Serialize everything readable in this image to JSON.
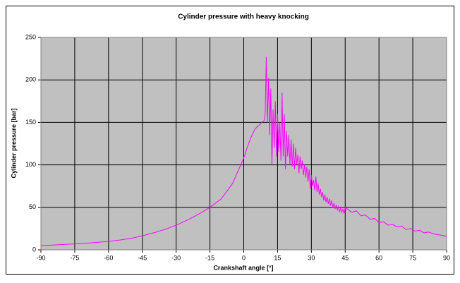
{
  "chart_data": {
    "type": "line",
    "title": "Cylinder pressure with heavy knocking",
    "x_label": "Crankshaft angle [°]",
    "y_label": "Cylinder pressure [bar]",
    "xlim": [
      -90,
      90
    ],
    "xticks": [
      -90,
      -75,
      -60,
      -45,
      -30,
      -15,
      0,
      15,
      30,
      45,
      60,
      75,
      90
    ],
    "ylim": [
      0,
      250
    ],
    "yticks": [
      0,
      50,
      100,
      150,
      200,
      250
    ],
    "grid": true,
    "color": "#ff00ff",
    "x": [
      -90,
      -85,
      -80,
      -75,
      -70,
      -65,
      -60,
      -55,
      -50,
      -45,
      -40,
      -35,
      -30,
      -25,
      -20,
      -15,
      -10,
      -5,
      0,
      1,
      2,
      3,
      4,
      5,
      6,
      7,
      8,
      9,
      9.5,
      10,
      10.5,
      11,
      11.5,
      12,
      12.5,
      13,
      13.5,
      14,
      14.5,
      15,
      15.5,
      16,
      16.5,
      17,
      17.5,
      18,
      18.5,
      19,
      19.5,
      20,
      20.5,
      21,
      21.5,
      22,
      22.5,
      23,
      23.5,
      24,
      24.5,
      25,
      25.5,
      26,
      26.5,
      27,
      27.5,
      28,
      28.5,
      29,
      29.5,
      30,
      30.5,
      31,
      31.5,
      32,
      32.5,
      33,
      33.5,
      34,
      34.5,
      35,
      35.5,
      36,
      36.5,
      37,
      37.5,
      38,
      38.5,
      39,
      39.5,
      40,
      40.5,
      41,
      41.5,
      42,
      42.5,
      43,
      43.5,
      44,
      44.5,
      45,
      46,
      48,
      50,
      52,
      54,
      56,
      58,
      60,
      62,
      64,
      66,
      68,
      70,
      72,
      74,
      76,
      78,
      80,
      82,
      84,
      86,
      88,
      90
    ],
    "values": [
      5,
      5.6,
      6.3,
      7,
      7.8,
      8.8,
      10,
      11.5,
      13.5,
      16.5,
      20,
      24,
      29,
      35,
      42,
      50,
      60,
      78,
      108,
      116,
      124,
      131,
      137,
      142,
      145,
      147,
      150,
      152,
      160,
      227,
      150,
      202,
      135,
      190,
      100,
      165,
      120,
      175,
      110,
      160,
      115,
      150,
      105,
      185,
      110,
      160,
      95,
      140,
      110,
      135,
      100,
      130,
      98,
      125,
      95,
      120,
      100,
      112,
      90,
      110,
      95,
      105,
      88,
      100,
      85,
      98,
      80,
      95,
      72,
      88,
      75,
      82,
      70,
      86,
      68,
      78,
      65,
      72,
      62,
      68,
      58,
      65,
      56,
      62,
      54,
      60,
      52,
      58,
      50,
      55,
      48,
      53,
      47,
      51,
      45,
      49,
      44,
      48,
      43,
      50,
      48,
      44,
      46,
      40,
      41,
      36,
      37,
      32,
      33,
      29,
      30,
      27,
      28,
      24,
      25,
      22,
      23,
      20,
      21,
      19,
      18,
      17,
      16
    ]
  }
}
